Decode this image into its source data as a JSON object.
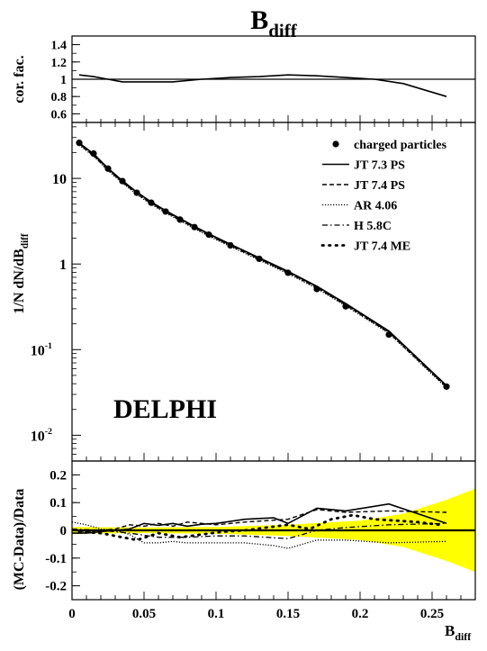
{
  "chart_data": [
    {
      "type": "line",
      "panel": "correction-factor",
      "title": "B",
      "title_sub": "diff",
      "ylabel": "cor. fac.",
      "xlim": [
        0,
        0.28
      ],
      "ylim": [
        0.5,
        1.5
      ],
      "yticks": [
        0.6,
        0.8,
        1,
        1.2,
        1.4
      ],
      "ytick_labels": [
        "0.6",
        "0.8",
        "1",
        "1.2",
        "1.4"
      ],
      "reference_line": 1,
      "series": [
        {
          "x": [
            0.005,
            0.015,
            0.025,
            0.035,
            0.045,
            0.055,
            0.07,
            0.09,
            0.11,
            0.13,
            0.15,
            0.17,
            0.19,
            0.21,
            0.23,
            0.26
          ],
          "y": [
            1.05,
            1.03,
            1.0,
            0.97,
            0.97,
            0.97,
            0.97,
            1.0,
            1.02,
            1.03,
            1.05,
            1.04,
            1.02,
            1.0,
            0.95,
            0.8
          ]
        }
      ]
    },
    {
      "type": "scatter",
      "panel": "distribution",
      "ylabel": "1/N dN/dB",
      "ylabel_sub": "diff",
      "yscale": "log",
      "xlim": [
        0,
        0.28
      ],
      "ylim": [
        0.005,
        45
      ],
      "ytick_labels": [
        {
          "value": 10,
          "base": "10",
          "exp": ""
        },
        {
          "value": 1,
          "base": "1",
          "exp": ""
        },
        {
          "value": 0.1,
          "base": "10",
          "exp": "-1"
        },
        {
          "value": 0.01,
          "base": "10",
          "exp": "-2"
        }
      ],
      "annotation": "DELPHI",
      "legend": [
        {
          "label": "charged particles",
          "style": "marker"
        },
        {
          "label": "JT 7.3 PS",
          "style": "solid"
        },
        {
          "label": "JT 7.4 PS",
          "style": "dashed"
        },
        {
          "label": "AR 4.06",
          "style": "dotted"
        },
        {
          "label": "H 5.8C",
          "style": "dashdot"
        },
        {
          "label": "JT 7.4 ME",
          "style": "sparse-dots"
        }
      ],
      "data": {
        "x": [
          0.005,
          0.015,
          0.025,
          0.035,
          0.045,
          0.055,
          0.065,
          0.075,
          0.085,
          0.095,
          0.11,
          0.13,
          0.15,
          0.17,
          0.19,
          0.22,
          0.26
        ],
        "y": [
          26.0,
          19.5,
          13.0,
          9.3,
          6.8,
          5.2,
          4.1,
          3.3,
          2.7,
          2.2,
          1.65,
          1.15,
          0.79,
          0.51,
          0.32,
          0.15,
          0.037
        ]
      },
      "mc": {
        "x": [
          0.005,
          0.015,
          0.025,
          0.035,
          0.045,
          0.055,
          0.065,
          0.075,
          0.085,
          0.095,
          0.11,
          0.13,
          0.15,
          0.17,
          0.19,
          0.22,
          0.26
        ],
        "y": [
          26.0,
          19.3,
          13.1,
          9.4,
          6.9,
          5.3,
          4.2,
          3.4,
          2.75,
          2.25,
          1.7,
          1.18,
          0.82,
          0.55,
          0.345,
          0.165,
          0.038
        ]
      }
    },
    {
      "type": "line",
      "panel": "residuals",
      "ylabel": "(MC-Data)/Data",
      "xlabel": "B",
      "xlabel_sub": "diff",
      "xlim": [
        0,
        0.28
      ],
      "ylim": [
        -0.25,
        0.25
      ],
      "yticks": [
        -0.2,
        -0.1,
        0,
        0.1,
        0.2
      ],
      "ytick_labels": [
        "-0.2",
        "-0.1",
        "0",
        "0.1",
        "0.2"
      ],
      "xticks": [
        0,
        0.05,
        0.1,
        0.15,
        0.2,
        0.25
      ],
      "xtick_labels": [
        "0",
        "0.05",
        "0.1",
        "0.15",
        "0.2",
        "0.25"
      ],
      "band_color": "#ffff00",
      "band": {
        "x": [
          0,
          0.05,
          0.1,
          0.15,
          0.2,
          0.23,
          0.26,
          0.28
        ],
        "upper": [
          0.012,
          0.01,
          0.012,
          0.02,
          0.035,
          0.06,
          0.11,
          0.15
        ],
        "lower": [
          -0.012,
          -0.01,
          -0.012,
          -0.02,
          -0.035,
          -0.06,
          -0.11,
          -0.15
        ]
      },
      "series": [
        {
          "style": "solid",
          "x": [
            0.0,
            0.01,
            0.02,
            0.03,
            0.04,
            0.05,
            0.06,
            0.07,
            0.08,
            0.09,
            0.1,
            0.12,
            0.14,
            0.15,
            0.17,
            0.19,
            0.22,
            0.26
          ],
          "y": [
            -0.01,
            -0.01,
            -0.005,
            0.0,
            0.005,
            0.025,
            0.018,
            0.025,
            0.015,
            0.022,
            0.025,
            0.04,
            0.045,
            0.025,
            0.08,
            0.07,
            0.095,
            0.025
          ]
        },
        {
          "style": "dashed",
          "x": [
            0.0,
            0.01,
            0.02,
            0.03,
            0.04,
            0.05,
            0.06,
            0.07,
            0.08,
            0.1,
            0.12,
            0.15,
            0.17,
            0.19,
            0.22,
            0.26
          ],
          "y": [
            0.0,
            -0.005,
            0.0,
            0.005,
            0.02,
            0.015,
            0.025,
            0.015,
            0.03,
            0.02,
            0.03,
            0.04,
            0.075,
            0.065,
            0.07,
            0.065
          ]
        },
        {
          "style": "dotted",
          "x": [
            0.0,
            0.01,
            0.02,
            0.03,
            0.04,
            0.05,
            0.06,
            0.07,
            0.08,
            0.1,
            0.12,
            0.14,
            0.15,
            0.17,
            0.19,
            0.22,
            0.26
          ],
          "y": [
            0.03,
            0.02,
            0.005,
            0.0,
            -0.015,
            -0.045,
            -0.045,
            -0.04,
            -0.045,
            -0.045,
            -0.045,
            -0.055,
            -0.065,
            -0.035,
            -0.035,
            -0.045,
            -0.04
          ]
        },
        {
          "style": "dashdot",
          "x": [
            0.0,
            0.02,
            0.04,
            0.06,
            0.08,
            0.1,
            0.12,
            0.15,
            0.17,
            0.19,
            0.22,
            0.26
          ],
          "y": [
            0.005,
            0.0,
            -0.01,
            -0.025,
            -0.025,
            -0.02,
            -0.02,
            -0.03,
            0.0,
            0.01,
            0.02,
            0.025
          ]
        },
        {
          "style": "sparse-dots",
          "x": [
            0.005,
            0.02,
            0.03,
            0.045,
            0.06,
            0.075,
            0.09,
            0.105,
            0.12,
            0.135,
            0.15,
            0.165,
            0.18,
            0.195,
            0.21,
            0.225,
            0.24,
            0.255
          ],
          "y": [
            -0.005,
            -0.01,
            -0.02,
            -0.035,
            -0.01,
            -0.025,
            -0.015,
            -0.005,
            0.0,
            0.01,
            0.02,
            0.005,
            0.04,
            0.055,
            0.04,
            0.035,
            0.03,
            0.02
          ]
        }
      ]
    }
  ]
}
